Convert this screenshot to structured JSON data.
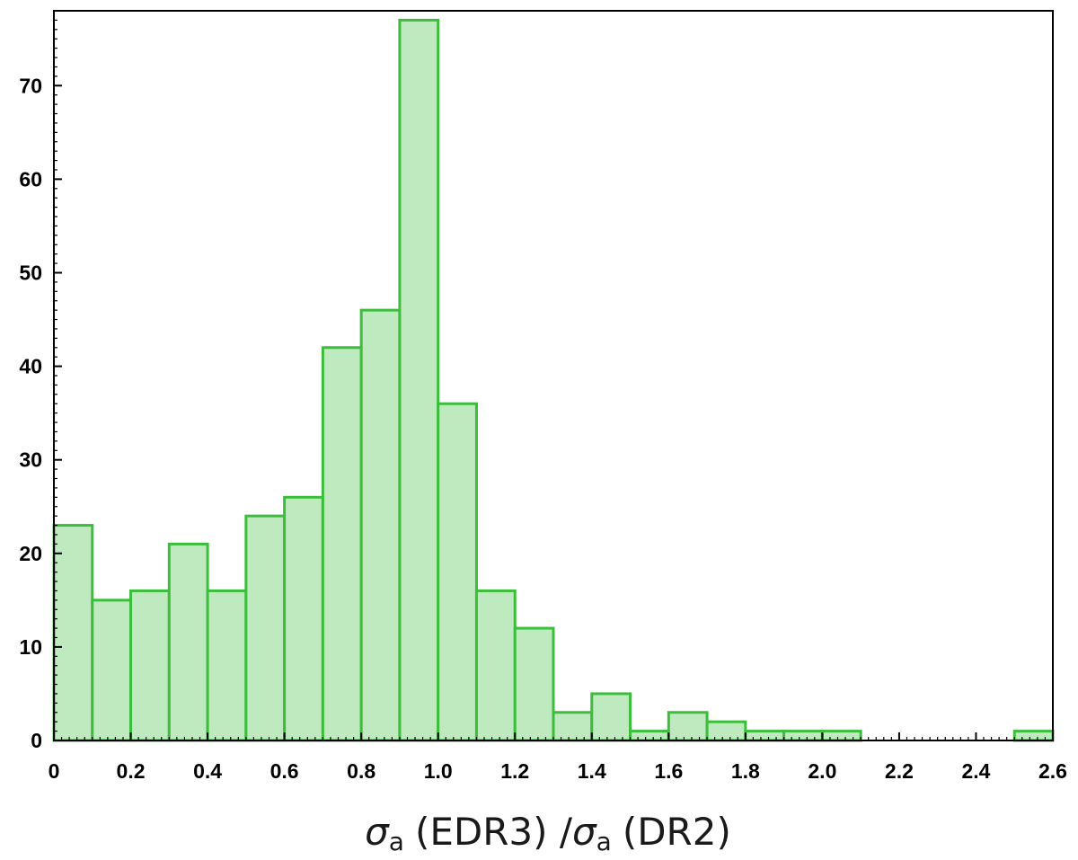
{
  "chart_data": {
    "type": "bar",
    "title": "",
    "xlabel_parts": {
      "sym1": "σ",
      "sub1": "a",
      "mid": "(EDR3)  /",
      "sym2": "σ",
      "sub2": "a",
      "tail": "(DR2)"
    },
    "ylabel": "",
    "bin_edges": [
      0,
      0.1,
      0.2,
      0.3,
      0.4,
      0.5,
      0.6,
      0.7,
      0.8,
      0.9,
      1.0,
      1.1,
      1.2,
      1.3,
      1.4,
      1.5,
      1.6,
      1.7,
      1.8,
      1.9,
      2.0,
      2.1,
      2.2,
      2.3,
      2.4,
      2.5,
      2.6
    ],
    "values": [
      23,
      15,
      16,
      21,
      16,
      24,
      26,
      42,
      46,
      77,
      36,
      16,
      12,
      3,
      5,
      1,
      3,
      2,
      1,
      1,
      1,
      0,
      0,
      0,
      0,
      1
    ],
    "xlim": [
      0,
      2.6
    ],
    "ylim": [
      0,
      78
    ],
    "xticks": [
      0,
      0.2,
      0.4,
      0.6,
      0.8,
      1.0,
      1.2,
      1.4,
      1.6,
      1.8,
      2.0,
      2.2,
      2.4,
      2.6
    ],
    "xtick_labels": [
      "0",
      "0.2",
      "0.4",
      "0.6",
      "0.8",
      "1.0",
      "1.2",
      "1.4",
      "1.6",
      "1.8",
      "2.0",
      "2.2",
      "2.4",
      "2.6"
    ],
    "yticks": [
      0,
      10,
      20,
      30,
      40,
      50,
      60,
      70
    ],
    "ytick_labels": [
      "0",
      "10",
      "20",
      "30",
      "40",
      "50",
      "60",
      "70"
    ],
    "grid": false,
    "legend": "none",
    "bar_fill": "#bfeabf",
    "bar_edge": "#3cbd3c"
  }
}
